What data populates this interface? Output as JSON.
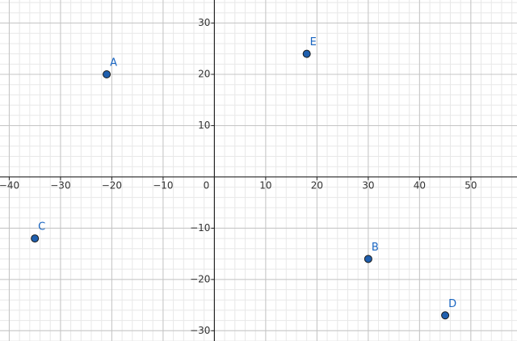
{
  "chart_data": {
    "type": "scatter",
    "labels": [
      "A",
      "B",
      "C",
      "D",
      "E"
    ],
    "x": [
      -21,
      30,
      -35,
      45,
      18
    ],
    "values": [
      20,
      -16,
      -12,
      -27,
      24
    ],
    "color": "#1f5fae",
    "label_color": "#1a66c2",
    "xlim": [
      -41.8,
      59
    ],
    "ylim": [
      -32,
      34.5
    ],
    "xticks": [
      {
        "value": -40,
        "label": "−40"
      },
      {
        "value": -30,
        "label": "−30"
      },
      {
        "value": -20,
        "label": "−20"
      },
      {
        "value": -10,
        "label": "−10"
      },
      0,
      10,
      20,
      30,
      40,
      50
    ],
    "yticks": [
      {
        "value": -30,
        "label": "−30"
      },
      {
        "value": -20,
        "label": "−20"
      },
      {
        "value": -10,
        "label": "−10"
      },
      10,
      20,
      30
    ],
    "grid": true,
    "minor_grid": 5
  }
}
